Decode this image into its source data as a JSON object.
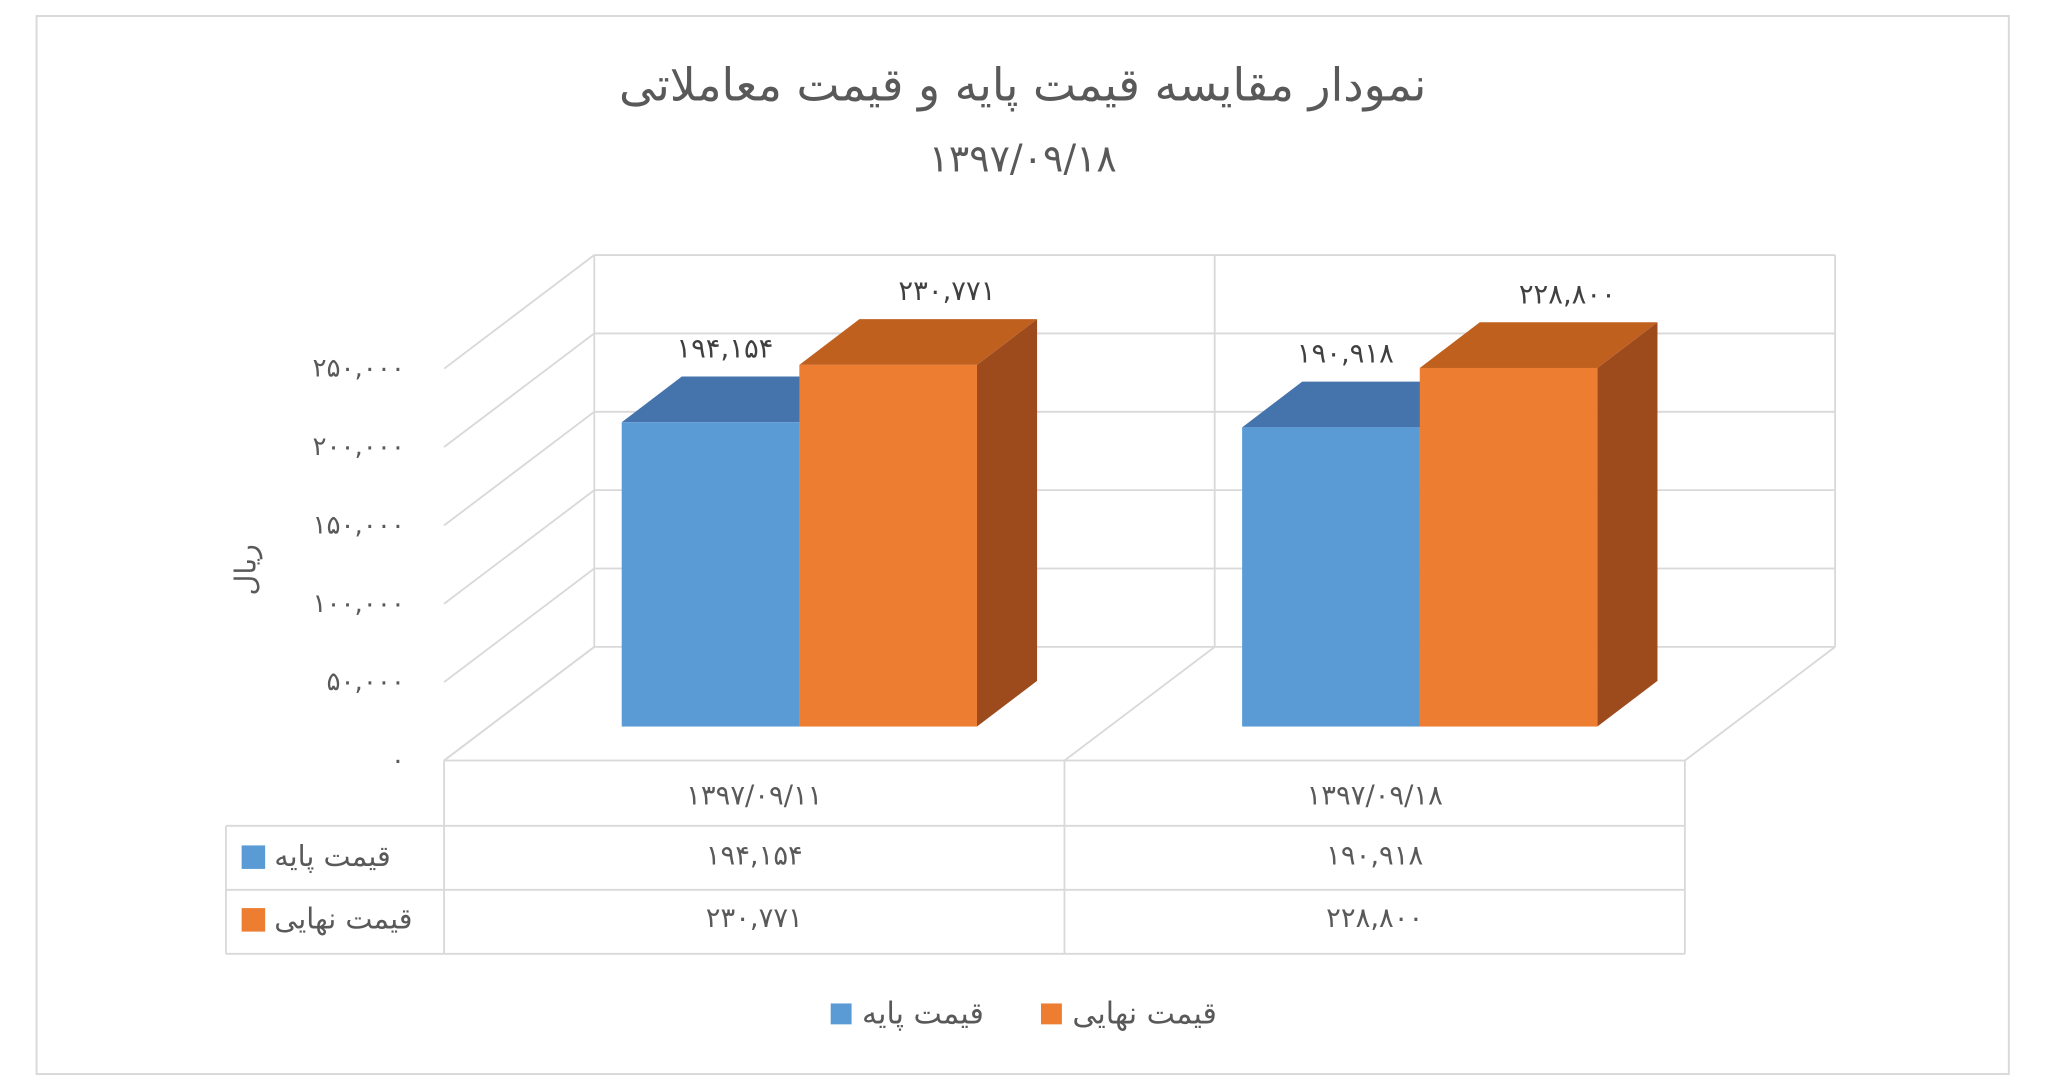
{
  "chart_data": {
    "type": "bar",
    "variant": "3d-clustered-column",
    "title": "نمودار مقایسه قیمت پایه و قیمت معاملاتی",
    "subtitle": "۱۳۹۷/۰۹/۱۸",
    "xlabel": "",
    "ylabel": "ریال",
    "categories": [
      "۱۳۹۷/۰۹/۱۱",
      "۱۳۹۷/۰۹/۱۸"
    ],
    "series": [
      {
        "name": "قیمت پایه",
        "values": [
          194154,
          190918
        ],
        "labels": [
          "۱۹۴,۱۵۴",
          "۱۹۰,۹۱۸"
        ],
        "color": "#5B9BD5",
        "top_color": "#4574AC",
        "side_color": "#3B6598"
      },
      {
        "name": "قیمت نهایی",
        "values": [
          230771,
          228800
        ],
        "labels": [
          "۲۳۰,۷۷۱",
          "۲۲۸,۸۰۰"
        ],
        "color": "#ED7D31",
        "top_color": "#C0601F",
        "side_color": "#9D4A1C"
      }
    ],
    "ylim": [
      0,
      250000
    ],
    "y_ticks": [
      0,
      50000,
      100000,
      150000,
      200000,
      250000
    ],
    "y_tick_labels": [
      "۰",
      "۵۰,۰۰۰",
      "۱۰۰,۰۰۰",
      "۱۵۰,۰۰۰",
      "۲۰۰,۰۰۰",
      "۲۵۰,۰۰۰"
    ],
    "grid": true,
    "legend": "bottom",
    "data_table": true
  }
}
